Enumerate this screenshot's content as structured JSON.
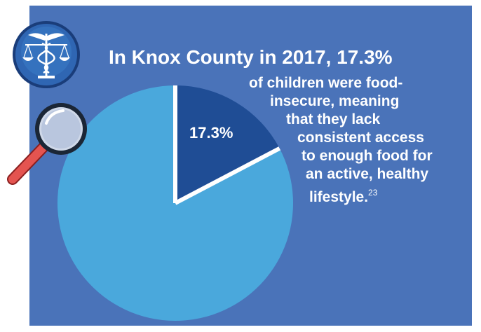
{
  "heading": "In Knox County in 2017, 17.3%",
  "body_lines": [
    "of children were food-",
    "insecure, meaning",
    "that they lack",
    "consistent access",
    "to enough food for",
    "an active, healthy",
    "lifestyle."
  ],
  "footnote": "23",
  "colors": {
    "background_panel": "#4a73b9",
    "pie_main": "#4aa8dc",
    "pie_highlight": "#1f4d95",
    "slice_border": "#ffffff"
  },
  "icons": [
    "caduceus-scales-icon",
    "magnifying-glass-icon"
  ],
  "chart_data": {
    "type": "pie",
    "slices": [
      {
        "value": 17.3,
        "label": "17.3%",
        "color": "#1f4d95"
      },
      {
        "value": 82.7,
        "label": "",
        "color": "#4aa8dc"
      }
    ],
    "start_angle": "12 o'clock, clockwise"
  }
}
